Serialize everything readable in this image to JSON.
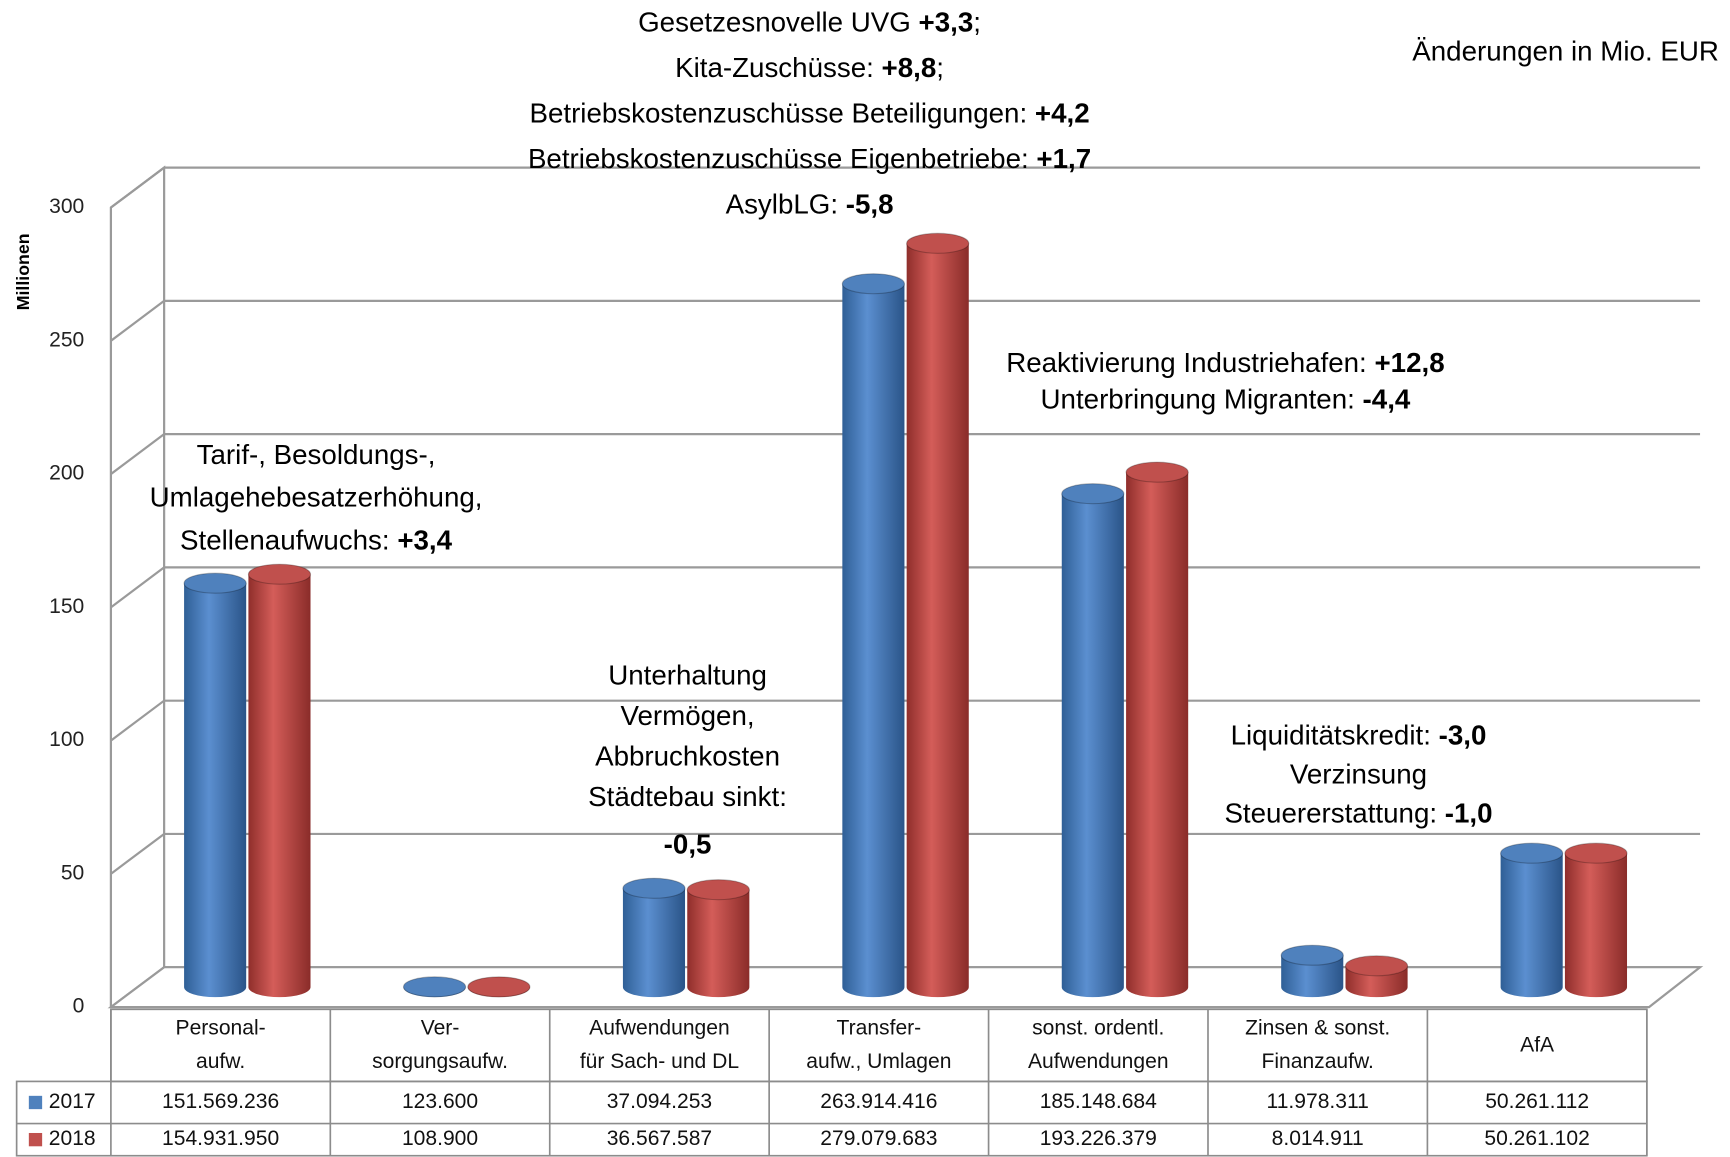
{
  "chart_data": {
    "type": "bar3d",
    "y_label": "Millionen",
    "unit_note": "Änderungen in Mio. EUR",
    "categories": [
      "Personal-\naufw.",
      "Ver-\nsorgungsaufw.",
      "Aufwendungen\nfür Sach- und DL",
      "Transfer-\naufw., Umlagen",
      "sonst. ordentl.\nAufwendungen",
      "Zinsen & sonst.\nFinanzaufw.",
      "AfA"
    ],
    "series": [
      {
        "name": "2017",
        "color": "#4f81bd",
        "values": [
          151.569236,
          0.1236,
          37.094253,
          263.914416,
          185.148684,
          11.978311,
          50.261112
        ],
        "value_labels": [
          "151.569.236",
          "123.600",
          "37.094.253",
          "263.914.416",
          "185.148.684",
          "11.978.311",
          "50.261.112"
        ]
      },
      {
        "name": "2018",
        "color": "#c0504d",
        "values": [
          154.93195,
          0.1089,
          36.567587,
          279.079683,
          193.226379,
          8.014911,
          50.261102
        ],
        "value_labels": [
          "154.931.950",
          "108.900",
          "36.567.587",
          "279.079.683",
          "193.226.379",
          "8.014.911",
          "50.261.102"
        ]
      }
    ],
    "ylim": [
      0,
      300
    ],
    "yticks": [
      0,
      50,
      100,
      150,
      200,
      250,
      300
    ],
    "grid": true,
    "annotations": [
      {
        "lines": [
          [
            "Gesetzesnovelle UVG ",
            {
              "text": "+3,3",
              "bold": true
            },
            ";"
          ],
          [
            "Kita-Zuschüsse: ",
            {
              "text": "+8,8",
              "bold": true
            },
            ";"
          ],
          [
            "Betriebskostenzuschüsse Beteiligungen: ",
            {
              "text": "+4,2",
              "bold": true
            }
          ],
          [
            "Betriebskostenzuschüsse Eigenbetriebe: ",
            {
              "text": "+1,7",
              "bold": true
            }
          ],
          [
            "AsylbLG: ",
            {
              "text": "-5,8",
              "bold": true
            }
          ]
        ]
      },
      {
        "lines": [
          [
            "Tarif-, Besoldungs-,"
          ],
          [
            "Umlagehebesatzerhöhung,"
          ],
          [
            "Stellenaufwuchs: ",
            {
              "text": "+3,4",
              "bold": true
            }
          ]
        ]
      },
      {
        "lines": [
          [
            "Unterhaltung"
          ],
          [
            "Vermögen,"
          ],
          [
            "Abbruchkosten"
          ],
          [
            "Städtebau sinkt:"
          ],
          [
            {
              "text": "-0,5",
              "bold": true
            }
          ]
        ]
      },
      {
        "lines": [
          [
            "Reaktivierung Industriehafen: ",
            {
              "text": "+12,8",
              "bold": true
            }
          ],
          [
            "Unterbringung Migranten: ",
            {
              "text": "-4,4",
              "bold": true
            }
          ]
        ]
      },
      {
        "lines": [
          [
            "Liquiditätskredit: ",
            {
              "text": "-3,0",
              "bold": true
            }
          ],
          [
            "Verzinsung"
          ],
          [
            "Steuererstattung: ",
            {
              "text": "-1,0",
              "bold": true
            }
          ]
        ]
      }
    ]
  }
}
